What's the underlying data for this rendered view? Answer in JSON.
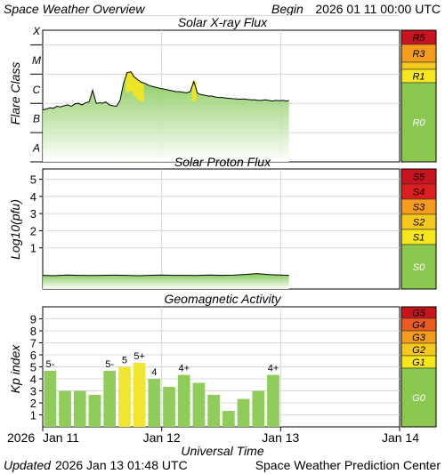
{
  "header": {
    "title": "Space Weather Overview",
    "begin_label": "Begin",
    "begin_value": "2026 01 11 00:00 UTC"
  },
  "footer": {
    "updated_label": "Updated",
    "updated_value": "2026 Jan 13 01:48 UTC",
    "center": "Space Weather Prediction Center",
    "xlabel": "Universal Time"
  },
  "x_axis": {
    "year": "2026",
    "ticks": [
      {
        "day": 0,
        "label": "Jan 11"
      },
      {
        "day": 1,
        "label": "Jan 12"
      },
      {
        "day": 2,
        "label": "Jan 13"
      },
      {
        "day": 3,
        "label": "Jan 14"
      }
    ],
    "range_days": [
      0,
      3
    ]
  },
  "colors": {
    "green_bar": "#8fcc5a",
    "yellow_bar": "#f0e632",
    "scale_green": "#8cc850",
    "yellow": "#f5e61e",
    "orange_y": "#f5c81e",
    "orange": "#f59b1e",
    "red_orange": "#eb5a1e",
    "red": "#dc1e1e",
    "dark_red": "#c8141e"
  },
  "chart_data": [
    {
      "type": "line",
      "title": "Solar X-ray Flux",
      "ylabel": "Flare Class",
      "y_classes": [
        "A",
        "B",
        "C",
        "M",
        "X"
      ],
      "y_scale": "log10 flux, class A=1e-8 to X=1e-4 W/m2",
      "ylim_log": [
        -8,
        -3.5
      ],
      "x": [
        0,
        0.03,
        0.06,
        0.09,
        0.12,
        0.15,
        0.18,
        0.21,
        0.24,
        0.27,
        0.3,
        0.33,
        0.36,
        0.39,
        0.42,
        0.45,
        0.48,
        0.49,
        0.5,
        0.53,
        0.56,
        0.59,
        0.62,
        0.65,
        0.68,
        0.71,
        0.74,
        0.77,
        0.8,
        0.83,
        0.86,
        0.89,
        0.92,
        0.95,
        0.98,
        1.0,
        1.03,
        1.06,
        1.09,
        1.12,
        1.15,
        1.18,
        1.21,
        1.24,
        1.27,
        1.3,
        1.33,
        1.36,
        1.39,
        1.42,
        1.45,
        1.48,
        1.51,
        1.54,
        1.57,
        1.6,
        1.63,
        1.66,
        1.69,
        1.72,
        1.75,
        1.78,
        1.81,
        1.84,
        1.87,
        1.9,
        1.93,
        1.96,
        1.99,
        2.02,
        2.05,
        2.07
      ],
      "y_log": [
        -6.22,
        -6.2,
        -6.15,
        -6.17,
        -6.1,
        -6.12,
        -6.08,
        -6.05,
        -6.1,
        -6.02,
        -6.0,
        -6.05,
        -5.98,
        -5.95,
        -5.55,
        -6.0,
        -5.98,
        -5.98,
        -6.0,
        -5.95,
        -6.05,
        -6.08,
        -6.1,
        -5.9,
        -5.3,
        -4.95,
        -4.92,
        -5.1,
        -5.2,
        -5.28,
        -5.32,
        -5.38,
        -5.42,
        -5.45,
        -5.48,
        -5.5,
        -5.52,
        -5.55,
        -5.57,
        -5.6,
        -5.6,
        -5.62,
        -5.64,
        -5.6,
        -5.25,
        -5.65,
        -5.7,
        -5.72,
        -5.75,
        -5.75,
        -5.78,
        -5.8,
        -5.8,
        -5.82,
        -5.83,
        -5.84,
        -5.85,
        -5.86,
        -5.85,
        -5.87,
        -5.88,
        -5.88,
        -5.9,
        -5.9,
        -5.88,
        -5.9,
        -5.92,
        -5.9,
        -5.91,
        -5.9,
        -5.92,
        -5.9
      ],
      "scale_labels": [
        "R5",
        "R3",
        "R1",
        "R0"
      ]
    },
    {
      "type": "line",
      "title": "Solar Proton Flux",
      "ylabel": "Log10(pfu)",
      "yticks": [
        1,
        2,
        3,
        4,
        5
      ],
      "ylim": [
        -1.4,
        5.6
      ],
      "x": [
        0,
        0.1,
        0.2,
        0.3,
        0.4,
        0.5,
        0.6,
        0.7,
        0.8,
        0.9,
        1.0,
        1.1,
        1.2,
        1.3,
        1.4,
        1.5,
        1.6,
        1.7,
        1.8,
        1.9,
        2.0,
        2.07
      ],
      "y": [
        -0.6,
        -0.62,
        -0.58,
        -0.6,
        -0.61,
        -0.6,
        -0.59,
        -0.6,
        -0.62,
        -0.6,
        -0.58,
        -0.6,
        -0.6,
        -0.61,
        -0.58,
        -0.6,
        -0.59,
        -0.55,
        -0.5,
        -0.56,
        -0.58,
        -0.6
      ],
      "scale_labels": [
        "S5",
        "S4",
        "S3",
        "S2",
        "S1",
        "S0"
      ]
    },
    {
      "type": "bar",
      "title": "Geomagnetic Activity",
      "ylabel": "Kp index",
      "yticks": [
        1,
        2,
        3,
        4,
        5,
        6,
        7,
        8,
        9
      ],
      "ylim": [
        0,
        10
      ],
      "bar_width_days": 0.125,
      "bars": [
        {
          "start": 0.0,
          "value": 4.67,
          "label": "5-",
          "storm": false
        },
        {
          "start": 0.125,
          "value": 3.0,
          "label": "",
          "storm": false
        },
        {
          "start": 0.25,
          "value": 3.0,
          "label": "",
          "storm": false
        },
        {
          "start": 0.375,
          "value": 2.67,
          "label": "",
          "storm": false
        },
        {
          "start": 0.5,
          "value": 4.67,
          "label": "5-",
          "storm": false
        },
        {
          "start": 0.625,
          "value": 5.0,
          "label": "5",
          "storm": true
        },
        {
          "start": 0.75,
          "value": 5.33,
          "label": "5+",
          "storm": true
        },
        {
          "start": 0.875,
          "value": 4.0,
          "label": "4",
          "storm": false
        },
        {
          "start": 1.0,
          "value": 3.33,
          "label": "",
          "storm": false
        },
        {
          "start": 1.125,
          "value": 4.33,
          "label": "4+",
          "storm": false
        },
        {
          "start": 1.25,
          "value": 3.67,
          "label": "",
          "storm": false
        },
        {
          "start": 1.375,
          "value": 2.67,
          "label": "",
          "storm": false
        },
        {
          "start": 1.5,
          "value": 1.33,
          "label": "",
          "storm": false
        },
        {
          "start": 1.625,
          "value": 2.33,
          "label": "",
          "storm": false
        },
        {
          "start": 1.75,
          "value": 3.0,
          "label": "",
          "storm": false
        },
        {
          "start": 1.875,
          "value": 4.33,
          "label": "4+",
          "storm": false
        }
      ],
      "scale_labels": [
        "G5",
        "G4",
        "G3",
        "G2",
        "G1",
        "G0"
      ]
    }
  ]
}
